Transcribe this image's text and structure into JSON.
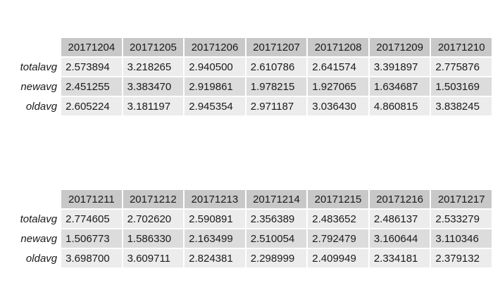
{
  "tables": [
    {
      "columns": [
        "20171204",
        "20171205",
        "20171206",
        "20171207",
        "20171208",
        "20171209",
        "20171210"
      ],
      "rows": [
        {
          "label": "totalavg",
          "values": [
            "2.573894",
            "3.218265",
            "2.940500",
            "2.610786",
            "2.641574",
            "3.391897",
            "2.775876"
          ]
        },
        {
          "label": "newavg",
          "values": [
            "2.451255",
            "3.383470",
            "2.919861",
            "1.978215",
            "1.927065",
            "1.634687",
            "1.503169"
          ]
        },
        {
          "label": "oldavg",
          "values": [
            "2.605224",
            "3.181197",
            "2.945354",
            "2.971187",
            "3.036430",
            "4.860815",
            "3.838245"
          ]
        }
      ]
    },
    {
      "columns": [
        "20171211",
        "20171212",
        "20171213",
        "20171214",
        "20171215",
        "20171216",
        "20171217"
      ],
      "rows": [
        {
          "label": "totalavg",
          "values": [
            "2.774605",
            "2.702620",
            "2.590891",
            "2.356389",
            "2.483652",
            "2.486137",
            "2.533279"
          ]
        },
        {
          "label": "newavg",
          "values": [
            "1.506773",
            "1.586330",
            "2.163499",
            "2.510054",
            "2.792479",
            "3.160644",
            "3.110346"
          ]
        },
        {
          "label": "oldavg",
          "values": [
            "3.698700",
            "3.609711",
            "2.824381",
            "2.298999",
            "2.409949",
            "2.334181",
            "2.379132"
          ]
        }
      ]
    }
  ]
}
